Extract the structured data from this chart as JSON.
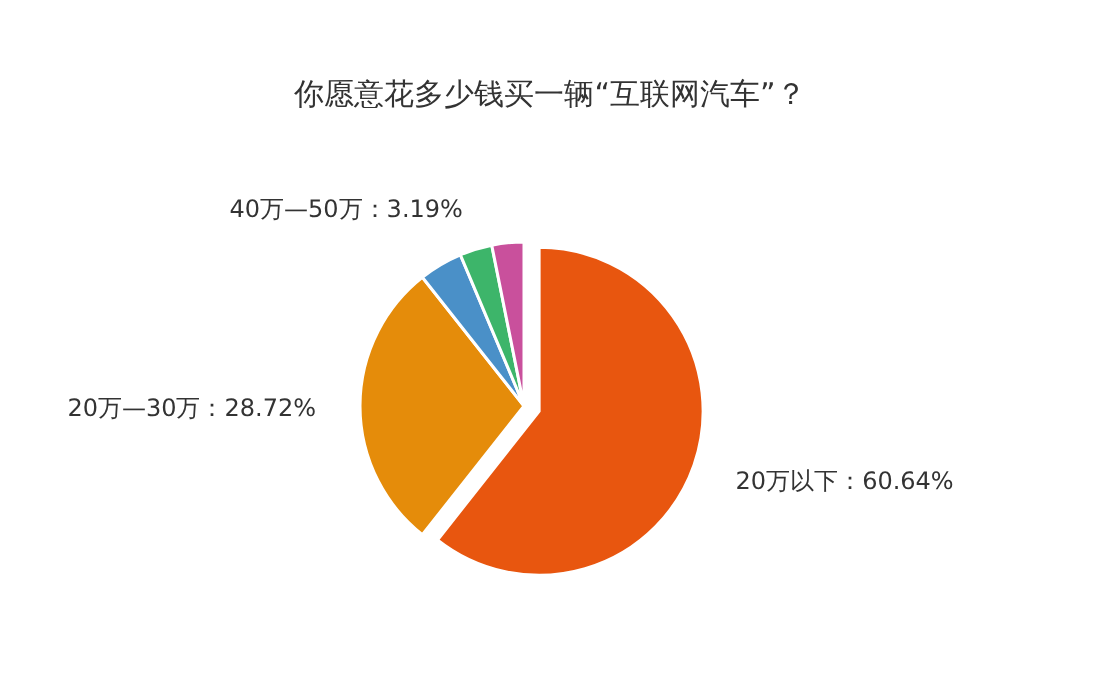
{
  "chart_data": {
    "type": "pie",
    "title": "你愿意花多少钱买一辆“互联网汽车”？",
    "categories": [
      "20万以下",
      "20万—30万",
      null,
      "40万—50万",
      null
    ],
    "values": [
      60.64,
      28.72,
      4.3,
      3.19,
      3.15
    ],
    "colors": [
      "#e8560f",
      "#e58c0a",
      "#4a90c8",
      "#3db56a",
      "#c9509c"
    ],
    "value_labels": [
      "60.64%",
      "28.72%",
      null,
      "3.19%",
      null
    ]
  }
}
